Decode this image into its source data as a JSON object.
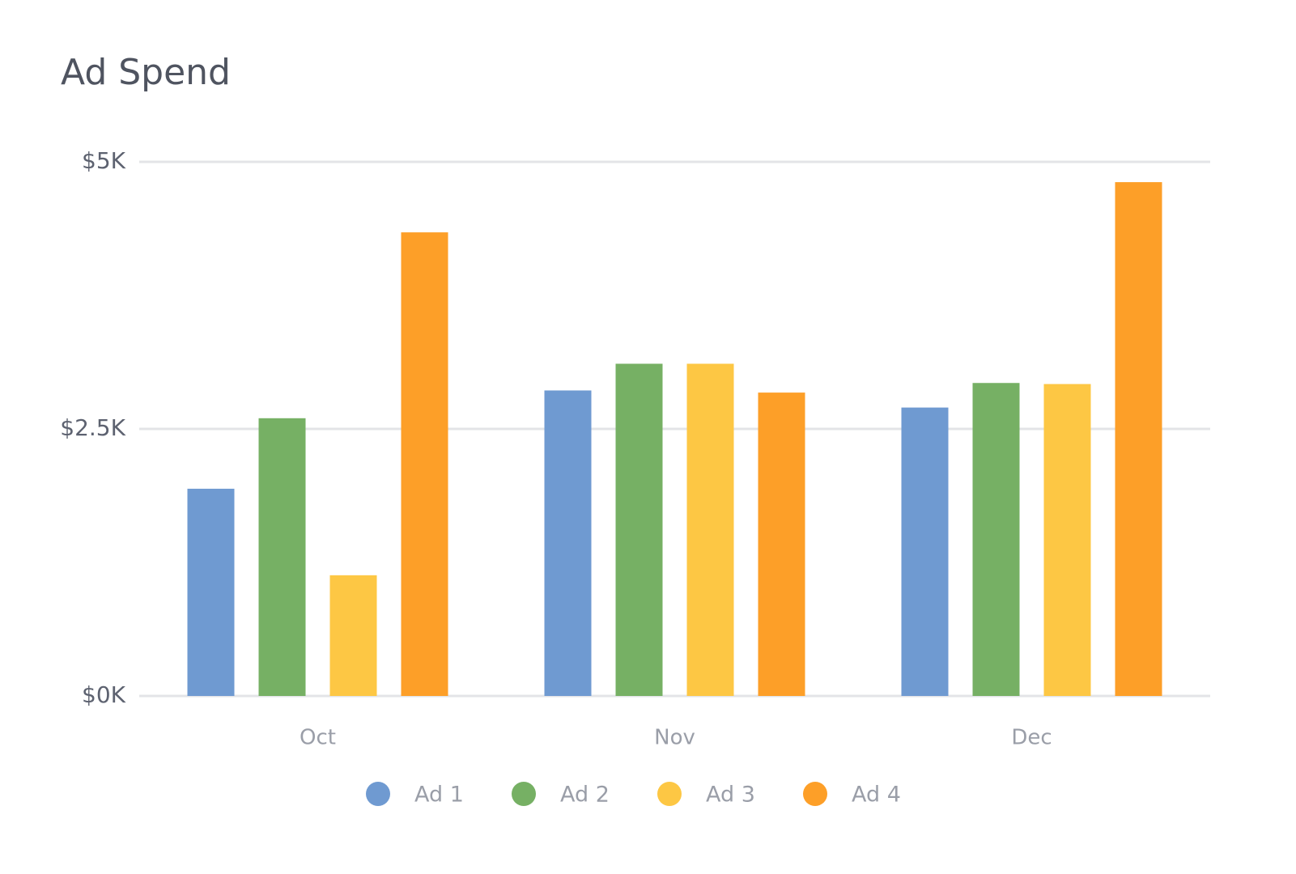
{
  "chart_data": {
    "type": "bar",
    "title": "Ad Spend",
    "categories": [
      "Oct",
      "Nov",
      "Dec"
    ],
    "series": [
      {
        "name": "Ad 1",
        "color": "#6f9ad1",
        "values": [
          1940,
          2860,
          2700
        ]
      },
      {
        "name": "Ad 2",
        "color": "#76b064",
        "values": [
          2600,
          3110,
          2930
        ]
      },
      {
        "name": "Ad 3",
        "color": "#fdc744",
        "values": [
          1130,
          3110,
          2920
        ]
      },
      {
        "name": "Ad 4",
        "color": "#fd9f28",
        "values": [
          4340,
          2840,
          4810
        ]
      }
    ],
    "ylim": [
      0,
      5000
    ],
    "yticks": [
      {
        "value": 0,
        "label": "$0K"
      },
      {
        "value": 2500,
        "label": "$2.5K"
      },
      {
        "value": 5000,
        "label": "$5K"
      }
    ],
    "grid": true,
    "legend": "bottom"
  }
}
